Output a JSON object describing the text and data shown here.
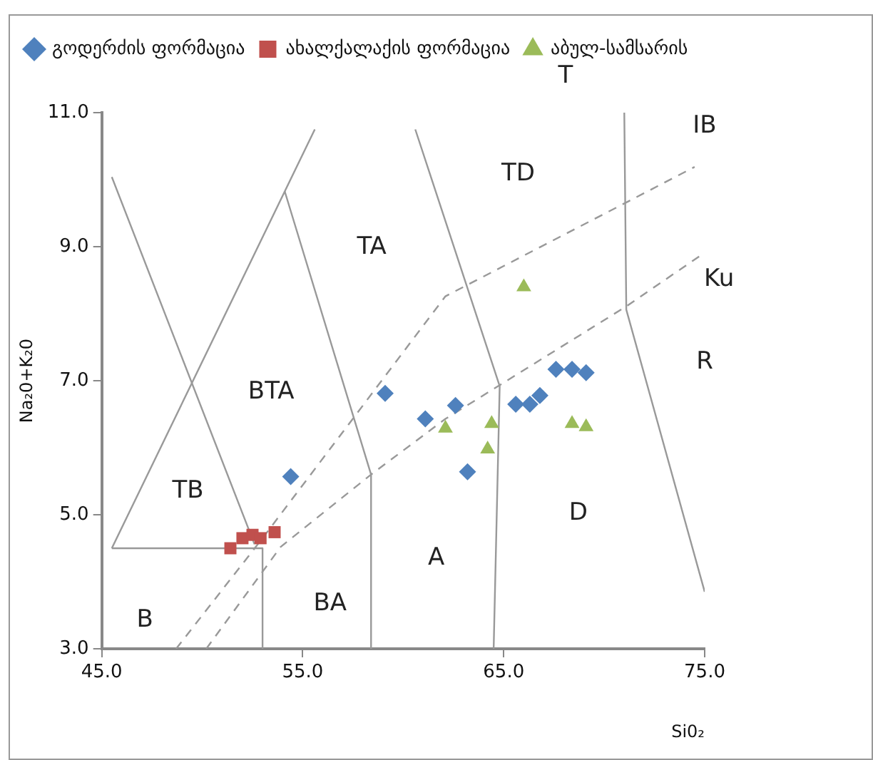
{
  "chart_data": {
    "type": "scatter",
    "xlabel": "Si0₂",
    "ylabel": "Na₂0+K₂0",
    "xlim": [
      45,
      75
    ],
    "ylim": [
      3,
      11
    ],
    "xticks": [
      {
        "value": 45,
        "label": "45.0"
      },
      {
        "value": 55,
        "label": "55.0"
      },
      {
        "value": 65,
        "label": "65.0"
      },
      {
        "value": 75,
        "label": "75.0"
      }
    ],
    "yticks": [
      {
        "value": 3,
        "label": "3.0"
      },
      {
        "value": 5,
        "label": "5.0"
      },
      {
        "value": 7,
        "label": "7.0"
      },
      {
        "value": 9,
        "label": "9.0"
      },
      {
        "value": 11,
        "label": "11.0"
      }
    ],
    "grid": false,
    "legend": "top",
    "series": [
      {
        "name": "გოდერძის ფორმაცია",
        "color": "#4f81bd",
        "marker": "diamond",
        "x": [
          54.4,
          59.1,
          61.1,
          62.6,
          63.2,
          65.6,
          66.3,
          66.8,
          67.6,
          68.4,
          69.1
        ],
        "values": [
          5.57,
          6.81,
          6.43,
          6.63,
          5.64,
          6.65,
          6.65,
          6.78,
          7.17,
          7.17,
          7.12
        ]
      },
      {
        "name": "ახალქალაქის ფორმაცია",
        "color": "#c0504d",
        "marker": "square",
        "x": [
          51.4,
          52.0,
          52.5,
          52.9,
          53.6
        ],
        "values": [
          4.5,
          4.65,
          4.7,
          4.65,
          4.74
        ]
      },
      {
        "name": "აბულ-სამსარის",
        "color": "#9bbb59",
        "marker": "triangle",
        "x": [
          62.1,
          64.4,
          64.2,
          66.0,
          68.4,
          69.1
        ],
        "values": [
          6.29,
          6.36,
          5.98,
          8.4,
          6.36,
          6.31
        ]
      },
      {
        "type": "line",
        "color": "#999999",
        "marker": "none",
        "line_style": "solid",
        "x": [
          45.5,
          52.6
        ],
        "values": [
          10.04,
          4.56
        ]
      },
      {
        "type": "line",
        "color": "#999999",
        "marker": "none",
        "line_style": "solid",
        "x": [
          45.5,
          55.6
        ],
        "values": [
          4.5,
          10.75
        ]
      },
      {
        "type": "line",
        "color": "#999999",
        "marker": "none",
        "line_style": "solid",
        "x": [
          45.5,
          53.0
        ],
        "values": [
          4.5,
          4.5
        ]
      },
      {
        "type": "line",
        "color": "#999999",
        "marker": "none",
        "line_style": "solid",
        "x": [
          54.1,
          58.4,
          58.4
        ],
        "values": [
          9.83,
          5.6,
          3
        ]
      },
      {
        "type": "line",
        "color": "#999999",
        "marker": "none",
        "line_style": "solid",
        "x": [
          53.0,
          53.0
        ],
        "values": [
          4.5,
          3
        ]
      },
      {
        "type": "line",
        "color": "#999999",
        "marker": "none",
        "line_style": "solid",
        "x": [
          60.6,
          64.8,
          64.5
        ],
        "values": [
          10.75,
          6.92,
          3
        ]
      },
      {
        "type": "line",
        "color": "#999999",
        "marker": "none",
        "line_style": "solid",
        "x": [
          71.0,
          71.1,
          75
        ],
        "values": [
          11,
          8.06,
          3.85
        ]
      },
      {
        "type": "line",
        "color": "#999999",
        "marker": "none",
        "line_style": "dashed",
        "x": [
          48.7,
          53.0,
          62.1,
          74.5
        ],
        "values": [
          3,
          4.65,
          8.26,
          10.19
        ]
      },
      {
        "type": "line",
        "color": "#999999",
        "marker": "none",
        "line_style": "dashed",
        "x": [
          50.2,
          53.9,
          58.4,
          62.1,
          71.1,
          74.9
        ],
        "values": [
          3,
          4.52,
          5.6,
          6.43,
          8.11,
          8.89
        ]
      }
    ],
    "annotations": [
      "TD",
      "TA",
      "BTA",
      "TB",
      "B",
      "BA",
      "A",
      "D",
      "IB",
      "R",
      "T",
      "Ku"
    ]
  }
}
